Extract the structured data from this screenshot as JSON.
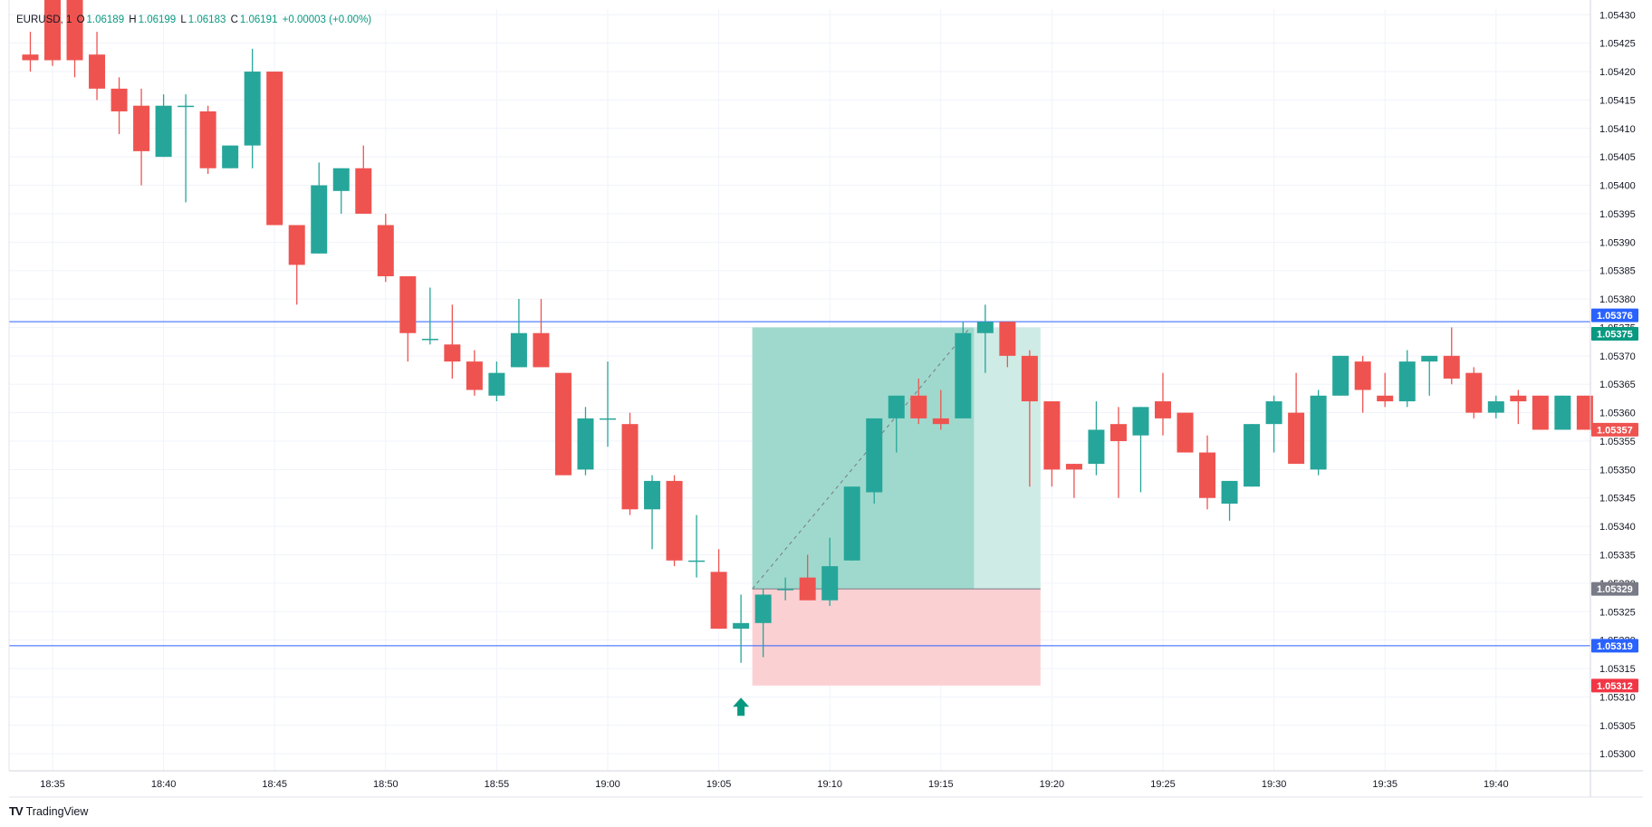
{
  "legend": {
    "symbol": "EURUSD, 1",
    "open_label": "O",
    "open": "1.06189",
    "high_label": "H",
    "high": "1.06199",
    "low_label": "L",
    "low": "1.06183",
    "close_label": "C",
    "close": "1.06191",
    "change": "+0.00003 (+0.00%)"
  },
  "brand": {
    "logo_glyph": "TV",
    "name": "TradingView"
  },
  "colors": {
    "up": "#26a69a",
    "down": "#ef5350",
    "hline": "#2962ff",
    "profit_zone": "#8fd3c4",
    "loss_zone": "#fbd0d3",
    "grid": "#f0f3fa",
    "axis_text": "#131722"
  },
  "chart_data": {
    "type": "candlestick",
    "ylim": [
      1.05297,
      1.05431
    ],
    "y_ticks": [
      "1.05300",
      "1.05305",
      "1.05310",
      "1.05315",
      "1.05320",
      "1.05325",
      "1.05330",
      "1.05335",
      "1.05340",
      "1.05345",
      "1.05350",
      "1.05355",
      "1.05360",
      "1.05365",
      "1.05370",
      "1.05375",
      "1.05380",
      "1.05385",
      "1.05390",
      "1.05395",
      "1.05400",
      "1.05405",
      "1.05410",
      "1.05415",
      "1.05420",
      "1.05425",
      "1.05430"
    ],
    "x_ticks": [
      "18:35",
      "18:40",
      "18:45",
      "18:50",
      "18:55",
      "19:00",
      "19:05",
      "19:10",
      "19:15",
      "19:20",
      "19:25",
      "19:30",
      "19:35",
      "19:40"
    ],
    "x_tick_minutes": [
      0,
      5,
      10,
      15,
      20,
      25,
      30,
      35,
      40,
      45,
      50,
      55,
      60,
      65
    ],
    "candles": [
      {
        "t": -1,
        "o": 1.05423,
        "h": 1.05427,
        "l": 1.0542,
        "c": 1.05422
      },
      {
        "t": 0,
        "o": 1.05435,
        "h": 1.05436,
        "l": 1.05421,
        "c": 1.05422
      },
      {
        "t": 1,
        "o": 1.05436,
        "h": 1.05437,
        "l": 1.05419,
        "c": 1.05422
      },
      {
        "t": 2,
        "o": 1.05423,
        "h": 1.05427,
        "l": 1.05415,
        "c": 1.05417
      },
      {
        "t": 3,
        "o": 1.05417,
        "h": 1.05419,
        "l": 1.05409,
        "c": 1.05413
      },
      {
        "t": 4,
        "o": 1.05414,
        "h": 1.05417,
        "l": 1.054,
        "c": 1.05406
      },
      {
        "t": 5,
        "o": 1.05405,
        "h": 1.05416,
        "l": 1.05405,
        "c": 1.05414
      },
      {
        "t": 6,
        "o": 1.05414,
        "h": 1.05416,
        "l": 1.05397,
        "c": 1.05414
      },
      {
        "t": 7,
        "o": 1.05413,
        "h": 1.05414,
        "l": 1.05402,
        "c": 1.05403
      },
      {
        "t": 8,
        "o": 1.05403,
        "h": 1.05407,
        "l": 1.05403,
        "c": 1.05407
      },
      {
        "t": 9,
        "o": 1.05407,
        "h": 1.05424,
        "l": 1.05403,
        "c": 1.0542
      },
      {
        "t": 10,
        "o": 1.0542,
        "h": 1.0542,
        "l": 1.05393,
        "c": 1.05393
      },
      {
        "t": 11,
        "o": 1.05393,
        "h": 1.05393,
        "l": 1.05379,
        "c": 1.05386
      },
      {
        "t": 12,
        "o": 1.05388,
        "h": 1.05404,
        "l": 1.05388,
        "c": 1.054
      },
      {
        "t": 13,
        "o": 1.05399,
        "h": 1.05403,
        "l": 1.05395,
        "c": 1.05403
      },
      {
        "t": 14,
        "o": 1.05403,
        "h": 1.05407,
        "l": 1.05395,
        "c": 1.05395
      },
      {
        "t": 15,
        "o": 1.05393,
        "h": 1.05395,
        "l": 1.05383,
        "c": 1.05384
      },
      {
        "t": 16,
        "o": 1.05384,
        "h": 1.05384,
        "l": 1.05369,
        "c": 1.05374
      },
      {
        "t": 17,
        "o": 1.05373,
        "h": 1.05382,
        "l": 1.05372,
        "c": 1.05373
      },
      {
        "t": 18,
        "o": 1.05372,
        "h": 1.05379,
        "l": 1.05366,
        "c": 1.05369
      },
      {
        "t": 19,
        "o": 1.05369,
        "h": 1.05371,
        "l": 1.05363,
        "c": 1.05364
      },
      {
        "t": 20,
        "o": 1.05363,
        "h": 1.05369,
        "l": 1.05362,
        "c": 1.05367
      },
      {
        "t": 21,
        "o": 1.05368,
        "h": 1.0538,
        "l": 1.05368,
        "c": 1.05374
      },
      {
        "t": 22,
        "o": 1.05374,
        "h": 1.0538,
        "l": 1.05368,
        "c": 1.05368
      },
      {
        "t": 23,
        "o": 1.05367,
        "h": 1.05367,
        "l": 1.05349,
        "c": 1.05349
      },
      {
        "t": 24,
        "o": 1.0535,
        "h": 1.05361,
        "l": 1.05349,
        "c": 1.05359
      },
      {
        "t": 25,
        "o": 1.05359,
        "h": 1.05369,
        "l": 1.05354,
        "c": 1.05359
      },
      {
        "t": 26,
        "o": 1.05358,
        "h": 1.0536,
        "l": 1.05342,
        "c": 1.05343
      },
      {
        "t": 27,
        "o": 1.05343,
        "h": 1.05349,
        "l": 1.05336,
        "c": 1.05348
      },
      {
        "t": 28,
        "o": 1.05348,
        "h": 1.05349,
        "l": 1.05333,
        "c": 1.05334
      },
      {
        "t": 29,
        "o": 1.05334,
        "h": 1.05342,
        "l": 1.05331,
        "c": 1.05334
      },
      {
        "t": 30,
        "o": 1.05332,
        "h": 1.05336,
        "l": 1.05322,
        "c": 1.05322
      },
      {
        "t": 31,
        "o": 1.05322,
        "h": 1.05328,
        "l": 1.05316,
        "c": 1.05323
      },
      {
        "t": 32,
        "o": 1.05323,
        "h": 1.05329,
        "l": 1.05317,
        "c": 1.05328
      },
      {
        "t": 33,
        "o": 1.05329,
        "h": 1.05331,
        "l": 1.05327,
        "c": 1.05329
      },
      {
        "t": 34,
        "o": 1.05331,
        "h": 1.05335,
        "l": 1.05327,
        "c": 1.05327
      },
      {
        "t": 35,
        "o": 1.05327,
        "h": 1.05338,
        "l": 1.05326,
        "c": 1.05333
      },
      {
        "t": 36,
        "o": 1.05334,
        "h": 1.05347,
        "l": 1.05334,
        "c": 1.05347
      },
      {
        "t": 37,
        "o": 1.05346,
        "h": 1.05359,
        "l": 1.05344,
        "c": 1.05359
      },
      {
        "t": 38,
        "o": 1.05359,
        "h": 1.05363,
        "l": 1.05353,
        "c": 1.05363
      },
      {
        "t": 39,
        "o": 1.05363,
        "h": 1.05366,
        "l": 1.05358,
        "c": 1.05359
      },
      {
        "t": 40,
        "o": 1.05359,
        "h": 1.05364,
        "l": 1.05357,
        "c": 1.05358
      },
      {
        "t": 41,
        "o": 1.05359,
        "h": 1.05376,
        "l": 1.05359,
        "c": 1.05374
      },
      {
        "t": 42,
        "o": 1.05374,
        "h": 1.05379,
        "l": 1.05367,
        "c": 1.05376
      },
      {
        "t": 43,
        "o": 1.05376,
        "h": 1.05376,
        "l": 1.05368,
        "c": 1.0537
      },
      {
        "t": 44,
        "o": 1.0537,
        "h": 1.05371,
        "l": 1.05347,
        "c": 1.05362
      },
      {
        "t": 45,
        "o": 1.05362,
        "h": 1.05362,
        "l": 1.05347,
        "c": 1.0535
      },
      {
        "t": 46,
        "o": 1.05351,
        "h": 1.05351,
        "l": 1.05345,
        "c": 1.0535
      },
      {
        "t": 47,
        "o": 1.05351,
        "h": 1.05362,
        "l": 1.05349,
        "c": 1.05357
      },
      {
        "t": 48,
        "o": 1.05358,
        "h": 1.05361,
        "l": 1.05345,
        "c": 1.05355
      },
      {
        "t": 49,
        "o": 1.05356,
        "h": 1.05361,
        "l": 1.05346,
        "c": 1.05361
      },
      {
        "t": 50,
        "o": 1.05362,
        "h": 1.05367,
        "l": 1.05356,
        "c": 1.05359
      },
      {
        "t": 51,
        "o": 1.0536,
        "h": 1.0536,
        "l": 1.05353,
        "c": 1.05353
      },
      {
        "t": 52,
        "o": 1.05353,
        "h": 1.05356,
        "l": 1.05343,
        "c": 1.05345
      },
      {
        "t": 53,
        "o": 1.05344,
        "h": 1.05348,
        "l": 1.05341,
        "c": 1.05348
      },
      {
        "t": 54,
        "o": 1.05347,
        "h": 1.05358,
        "l": 1.05347,
        "c": 1.05358
      },
      {
        "t": 55,
        "o": 1.05358,
        "h": 1.05363,
        "l": 1.05353,
        "c": 1.05362
      },
      {
        "t": 56,
        "o": 1.0536,
        "h": 1.05367,
        "l": 1.05351,
        "c": 1.05351
      },
      {
        "t": 57,
        "o": 1.0535,
        "h": 1.05364,
        "l": 1.05349,
        "c": 1.05363
      },
      {
        "t": 58,
        "o": 1.05363,
        "h": 1.0537,
        "l": 1.05363,
        "c": 1.0537
      },
      {
        "t": 59,
        "o": 1.05369,
        "h": 1.0537,
        "l": 1.0536,
        "c": 1.05364
      },
      {
        "t": 60,
        "o": 1.05363,
        "h": 1.05367,
        "l": 1.05361,
        "c": 1.05362
      },
      {
        "t": 61,
        "o": 1.05362,
        "h": 1.05371,
        "l": 1.05361,
        "c": 1.05369
      },
      {
        "t": 62,
        "o": 1.05369,
        "h": 1.0537,
        "l": 1.05363,
        "c": 1.0537
      },
      {
        "t": 63,
        "o": 1.0537,
        "h": 1.05375,
        "l": 1.05365,
        "c": 1.05366
      },
      {
        "t": 64,
        "o": 1.05367,
        "h": 1.05368,
        "l": 1.05359,
        "c": 1.0536
      },
      {
        "t": 65,
        "o": 1.0536,
        "h": 1.05363,
        "l": 1.05359,
        "c": 1.05362
      },
      {
        "t": 66,
        "o": 1.05363,
        "h": 1.05364,
        "l": 1.05358,
        "c": 1.05362
      },
      {
        "t": 67,
        "o": 1.05363,
        "h": 1.05363,
        "l": 1.05357,
        "c": 1.05357
      },
      {
        "t": 68,
        "o": 1.05357,
        "h": 1.05363,
        "l": 1.05357,
        "c": 1.05363
      },
      {
        "t": 69,
        "o": 1.05363,
        "h": 1.05363,
        "l": 1.05357,
        "c": 1.05357
      }
    ],
    "horizontal_lines": [
      {
        "price": 1.05376,
        "label": "1.05376"
      },
      {
        "price": 1.05319,
        "label": "1.05319"
      }
    ],
    "price_tags": [
      {
        "price": 1.05376,
        "label": "1.05376",
        "color": "#2962ff",
        "offset": -2
      },
      {
        "price": 1.05375,
        "label": "1.05375",
        "color": "#089981",
        "offset": 2
      },
      {
        "price": 1.05357,
        "label": "1.05357",
        "color": "#ef5350",
        "offset": 0
      },
      {
        "price": 1.05329,
        "label": "1.05329",
        "color": "#787b86",
        "offset": 0
      },
      {
        "price": 1.05319,
        "label": "1.05319",
        "color": "#2962ff",
        "offset": 0
      },
      {
        "price": 1.05312,
        "label": "1.05312",
        "color": "#f23645",
        "offset": 0
      }
    ],
    "position": {
      "type": "long",
      "entry": 1.05329,
      "target": 1.05375,
      "stop": 1.05312,
      "start_t": 32,
      "end_t": 44,
      "exit_t": 41,
      "exit_price": 1.05375
    },
    "buy_marker": {
      "t": 31,
      "price": 1.05307
    }
  }
}
